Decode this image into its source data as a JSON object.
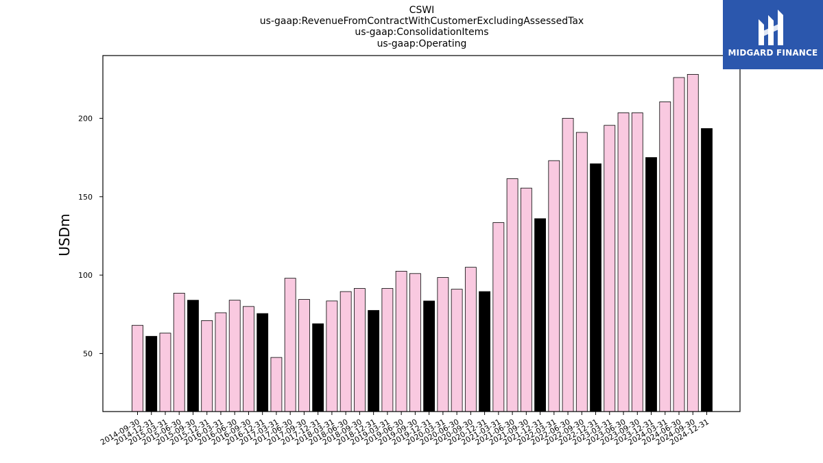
{
  "titles": [
    "CSWI",
    "us-gaap:RevenueFromContractWithCustomerExcludingAssessedTax",
    "us-gaap:ConsolidationItems",
    "us-gaap:Operating"
  ],
  "logo": {
    "text": "MIDGARD FINANCE",
    "color": "#2b57ad"
  },
  "colors": {
    "quarter": "#f9c9e0",
    "annual": "#000000",
    "edge": "#000000"
  },
  "chart_data": {
    "type": "bar",
    "ylabel": "USDm",
    "ylim": [
      13,
      240
    ],
    "yticks": [
      50,
      100,
      150,
      200
    ],
    "grid": false,
    "categories": [
      "2014-09-30",
      "2014-12-31",
      "2015-03-31",
      "2015-06-30",
      "2015-09-30",
      "2015-12-31",
      "2016-03-31",
      "2016-06-30",
      "2016-09-30",
      "2016-12-31",
      "2017-03-31",
      "2017-06-30",
      "2017-09-30",
      "2017-12-31",
      "2018-03-31",
      "2018-06-30",
      "2018-09-30",
      "2018-12-31",
      "2019-03-31",
      "2019-06-30",
      "2019-09-30",
      "2019-12-31",
      "2020-03-31",
      "2020-06-30",
      "2020-09-30",
      "2020-12-31",
      "2021-03-31",
      "2021-06-30",
      "2021-09-30",
      "2021-12-31",
      "2022-03-31",
      "2022-06-30",
      "2022-09-30",
      "2022-12-31",
      "2023-03-31",
      "2023-06-30",
      "2023-09-30",
      "2023-12-31",
      "2024-03-31",
      "2024-06-30",
      "2024-09-30",
      "2024-12-31"
    ],
    "values": [
      68,
      61,
      63,
      88.5,
      84,
      71,
      76,
      84,
      80,
      75.5,
      47.5,
      98,
      84.5,
      69,
      83.5,
      89.5,
      91.5,
      77.5,
      91.5,
      102.5,
      101,
      83.5,
      98.5,
      91,
      105,
      89.5,
      133.5,
      161.5,
      155.5,
      136,
      173,
      200,
      191,
      171,
      195.5,
      203.5,
      203.5,
      175,
      210.5,
      226,
      228,
      193.5
    ],
    "highlight": [
      1,
      4,
      9,
      13,
      17,
      21,
      25,
      29,
      33,
      37,
      41
    ]
  }
}
